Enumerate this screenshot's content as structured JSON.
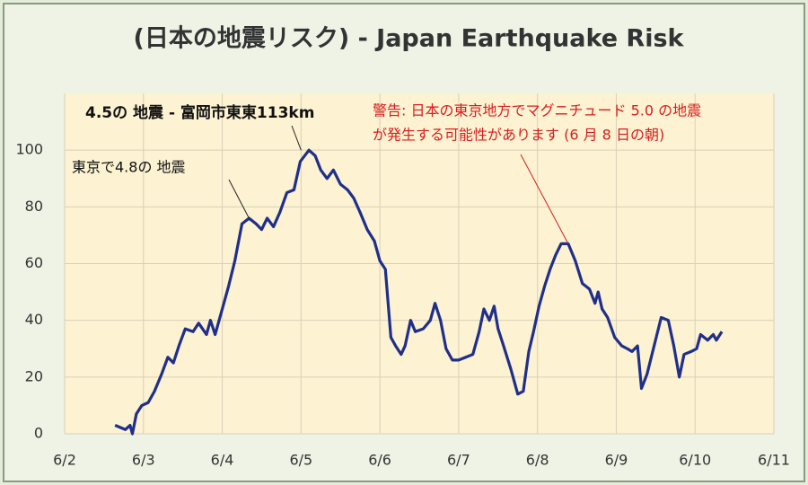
{
  "chart_data": {
    "type": "line",
    "title": "(日本の地震リスク) - Japan Earthquake Risk",
    "x": [
      2.64,
      2.77,
      2.83,
      2.86,
      2.91,
      2.98,
      3.06,
      3.14,
      3.23,
      3.31,
      3.38,
      3.45,
      3.53,
      3.63,
      3.7,
      3.8,
      3.85,
      3.91,
      4.0,
      4.08,
      4.16,
      4.25,
      4.34,
      4.43,
      4.5,
      4.57,
      4.65,
      4.73,
      4.82,
      4.91,
      4.99,
      5.1,
      5.18,
      5.25,
      5.33,
      5.41,
      5.5,
      5.59,
      5.67,
      5.75,
      5.84,
      5.93,
      6.0,
      6.07,
      6.14,
      6.2,
      6.27,
      6.32,
      6.39,
      6.45,
      6.55,
      6.64,
      6.7,
      6.77,
      6.84,
      6.92,
      7.0,
      7.09,
      7.18,
      7.26,
      7.32,
      7.39,
      7.45,
      7.5,
      7.57,
      7.66,
      7.75,
      7.82,
      7.89,
      7.95,
      8.02,
      8.09,
      8.16,
      8.23,
      8.3,
      8.39,
      8.48,
      8.57,
      8.66,
      8.73,
      8.77,
      8.82,
      8.89,
      8.98,
      9.07,
      9.14,
      9.2,
      9.27,
      9.32,
      9.39,
      9.48,
      9.57,
      9.66,
      9.73,
      9.8,
      9.86,
      9.95,
      10.02,
      10.07,
      10.16,
      10.23,
      10.27,
      10.34
    ],
    "series": [
      {
        "name": "Japan Earthquake Risk",
        "color": "#1f2f8a",
        "values": [
          3,
          1.5,
          3,
          0,
          7,
          10,
          11,
          15,
          21,
          27,
          25,
          31,
          37,
          36,
          39,
          35,
          40,
          35,
          44,
          52,
          61,
          74,
          76,
          74,
          72,
          76,
          73,
          78,
          85,
          86,
          96,
          100,
          98,
          93,
          90,
          93,
          88,
          86,
          83,
          78,
          72,
          68,
          61,
          58,
          34,
          31,
          28,
          31,
          40,
          36,
          37,
          40,
          46,
          40,
          30,
          26,
          26,
          27,
          28,
          36,
          44,
          40,
          45,
          37,
          31,
          23,
          14,
          15,
          29,
          36,
          45,
          52,
          58,
          63,
          67,
          67,
          61,
          53,
          51,
          46,
          50,
          44,
          41,
          34,
          31,
          30,
          29,
          31,
          16,
          21,
          31,
          41,
          40,
          31,
          20,
          28,
          29,
          30,
          35,
          33,
          35,
          33,
          36
        ]
      }
    ],
    "xlim": [
      2,
      11
    ],
    "xticks": [
      {
        "value": 2,
        "label": "6/2"
      },
      {
        "value": 3,
        "label": "6/3"
      },
      {
        "value": 4,
        "label": "6/4"
      },
      {
        "value": 5,
        "label": "6/5"
      },
      {
        "value": 6,
        "label": "6/6"
      },
      {
        "value": 7,
        "label": "6/7"
      },
      {
        "value": 8,
        "label": "6/8"
      },
      {
        "value": 9,
        "label": "6/9"
      },
      {
        "value": 10,
        "label": "6/10"
      },
      {
        "value": 11,
        "label": "6/11"
      }
    ],
    "ylim": [
      0,
      120
    ],
    "yticks": [
      0,
      20,
      40,
      60,
      80,
      100
    ],
    "grid": true,
    "annotations": [
      {
        "text": "4.5の 地震 - 富岡市東東113km",
        "x": 5.0,
        "y": 100
      },
      {
        "text": "東京で4.8の 地震",
        "x": 4.34,
        "y": 76
      },
      {
        "lines": [
          "警告: 日本の東京地方でマグニチュード 5.0 の地震",
          "が発生する可能性があります (6 月 8 日の朝)"
        ],
        "x": 8.39,
        "y": 67
      }
    ]
  }
}
